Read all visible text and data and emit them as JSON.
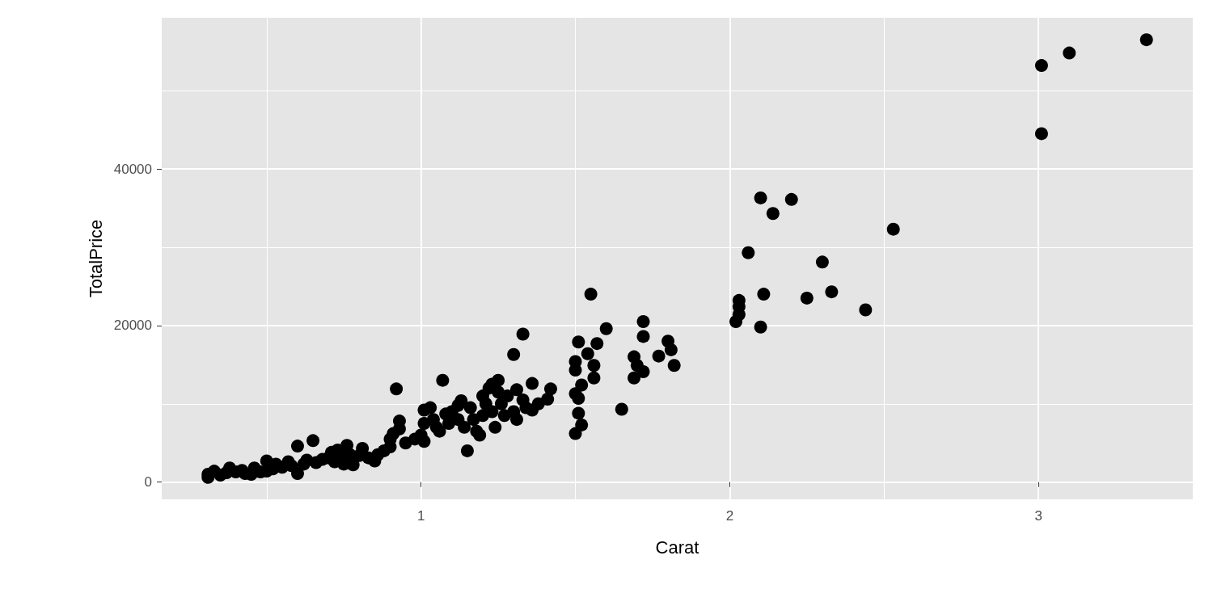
{
  "chart_data": {
    "type": "scatter",
    "xlabel": "Carat",
    "ylabel": "TotalPrice",
    "color": "#000000",
    "marker": "circle",
    "grid": true,
    "xlim": [
      0.16,
      3.5
    ],
    "ylim": [
      -2200,
      59300
    ],
    "xticks": [
      1,
      2,
      3
    ],
    "yticks": [
      0,
      20000,
      40000
    ],
    "x": [
      0.31,
      0.31,
      0.33,
      0.35,
      0.37,
      0.38,
      0.4,
      0.42,
      0.43,
      0.45,
      0.46,
      0.48,
      0.5,
      0.5,
      0.52,
      0.53,
      0.55,
      0.57,
      0.58,
      0.6,
      0.6,
      0.62,
      0.63,
      0.65,
      0.66,
      0.68,
      0.7,
      0.71,
      0.72,
      0.73,
      0.74,
      0.75,
      0.76,
      0.77,
      0.78,
      0.8,
      0.81,
      0.83,
      0.85,
      0.86,
      0.88,
      0.9,
      0.9,
      0.91,
      0.92,
      0.93,
      0.93,
      0.95,
      0.98,
      1.0,
      1.01,
      1.01,
      1.01,
      1.03,
      1.04,
      1.05,
      1.06,
      1.07,
      1.08,
      1.09,
      1.1,
      1.12,
      1.12,
      1.13,
      1.14,
      1.15,
      1.16,
      1.17,
      1.18,
      1.19,
      1.2,
      1.2,
      1.21,
      1.22,
      1.23,
      1.23,
      1.24,
      1.25,
      1.25,
      1.26,
      1.27,
      1.28,
      1.3,
      1.3,
      1.31,
      1.31,
      1.33,
      1.33,
      1.34,
      1.36,
      1.36,
      1.38,
      1.41,
      1.42,
      1.51,
      1.5,
      1.5,
      1.57,
      1.6,
      1.54,
      1.56,
      1.56,
      1.52,
      1.5,
      1.51,
      1.51,
      1.52,
      1.5,
      1.55,
      1.72,
      1.72,
      1.69,
      1.7,
      1.72,
      1.69,
      1.8,
      1.81,
      1.77,
      1.82,
      1.65,
      2.02,
      2.03,
      2.03,
      2.03,
      2.06,
      2.1,
      2.11,
      2.1,
      2.14,
      2.2,
      2.25,
      2.3,
      2.33,
      2.44,
      2.53,
      3.01,
      3.01,
      3.1,
      3.35
    ],
    "values": [
      600,
      1000,
      1400,
      900,
      1200,
      1800,
      1300,
      1500,
      1100,
      1000,
      1800,
      1300,
      2700,
      1400,
      1700,
      2300,
      1900,
      2600,
      2100,
      4600,
      1100,
      2300,
      2800,
      5300,
      2500,
      2900,
      3100,
      3800,
      2600,
      4100,
      3300,
      2300,
      4700,
      3500,
      2200,
      3400,
      4300,
      3100,
      2700,
      3500,
      4000,
      4500,
      5500,
      6200,
      11900,
      7800,
      6800,
      5000,
      5500,
      6000,
      5200,
      7500,
      9200,
      9500,
      8000,
      7000,
      6500,
      13000,
      8700,
      7500,
      9000,
      8000,
      9800,
      10400,
      7000,
      4000,
      9500,
      8000,
      6500,
      6000,
      11000,
      8500,
      10000,
      12000,
      12500,
      9000,
      7000,
      13000,
      11500,
      10000,
      8500,
      11000,
      16300,
      9000,
      8000,
      11800,
      18900,
      10500,
      9500,
      12600,
      9200,
      10000,
      10600,
      11900,
      17900,
      15400,
      14300,
      17700,
      19600,
      16400,
      14900,
      13300,
      12400,
      11300,
      10700,
      8800,
      7300,
      6200,
      24000,
      20500,
      18600,
      16000,
      14900,
      14100,
      13300,
      18000,
      16900,
      16100,
      14900,
      9300,
      20500,
      21400,
      23200,
      22400,
      29300,
      36300,
      24000,
      19800,
      34300,
      36100,
      23500,
      28100,
      24300,
      22000,
      32300,
      53200,
      44500,
      54800,
      56500
    ]
  }
}
